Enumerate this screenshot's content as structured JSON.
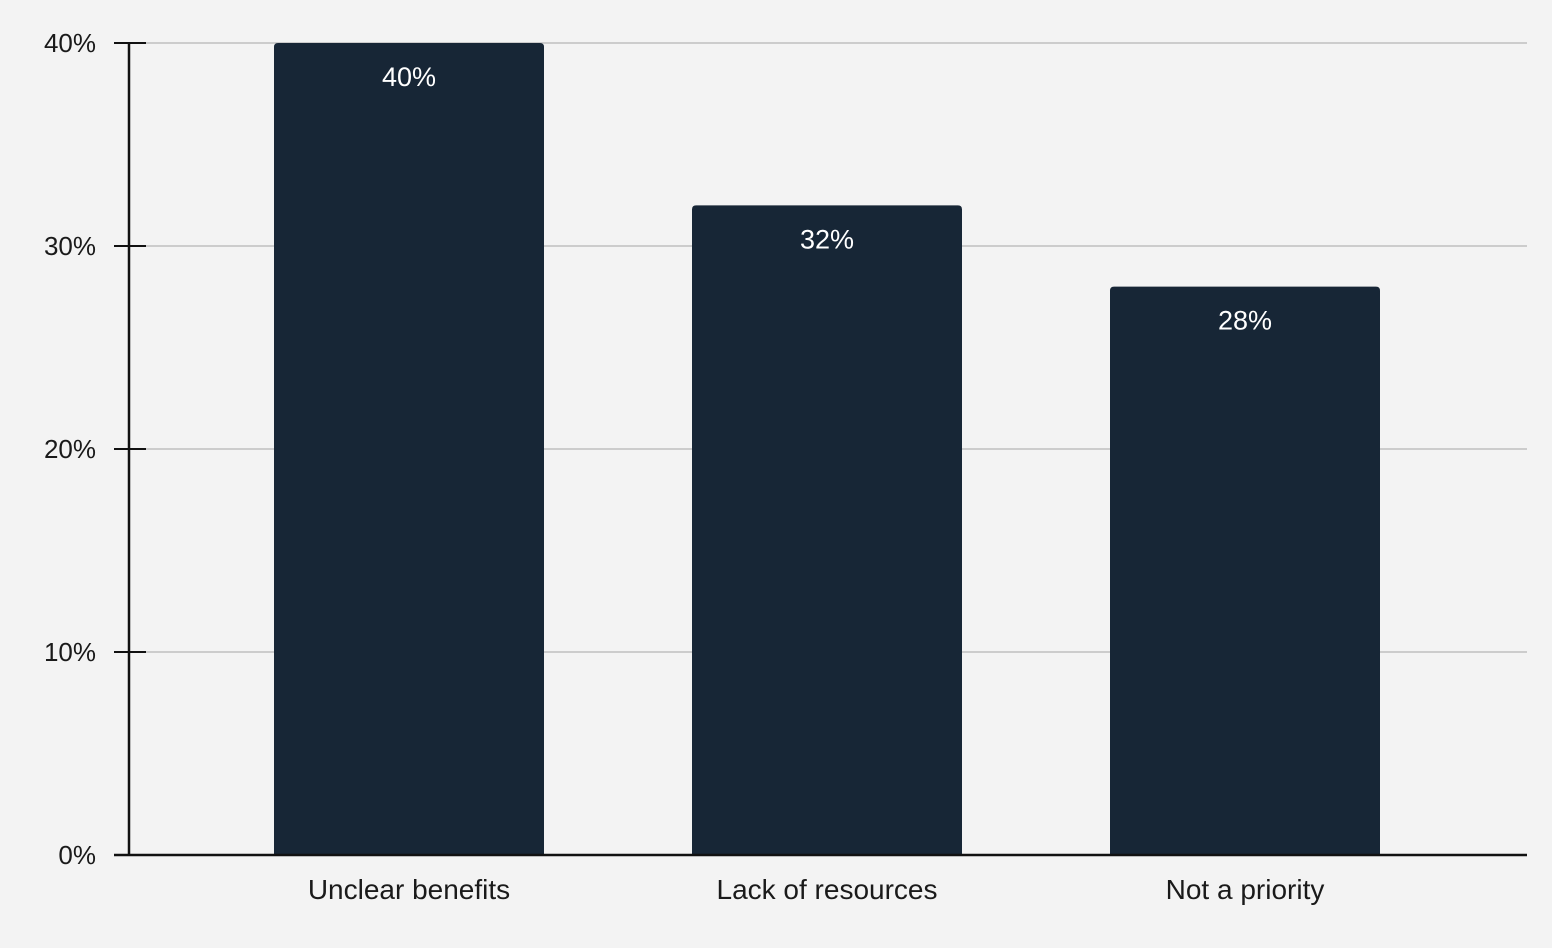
{
  "chart_data": {
    "type": "bar",
    "categories": [
      "Unclear benefits",
      "Lack of resources",
      "Not a priority"
    ],
    "values": [
      40,
      32,
      28
    ],
    "data_labels": [
      "40%",
      "32%",
      "28%"
    ],
    "ylim": [
      0,
      40
    ],
    "yticks": [
      0,
      10,
      20,
      30,
      40
    ],
    "ytick_labels": [
      "0%",
      "10%",
      "20%",
      "30%",
      "40%"
    ],
    "title": "",
    "xlabel": "",
    "ylabel": "",
    "grid": true,
    "legend": "none",
    "bar_color": "#172636",
    "grid_color": "#cccccc",
    "axis_color": "#111111",
    "background": "#f3f3f3"
  }
}
